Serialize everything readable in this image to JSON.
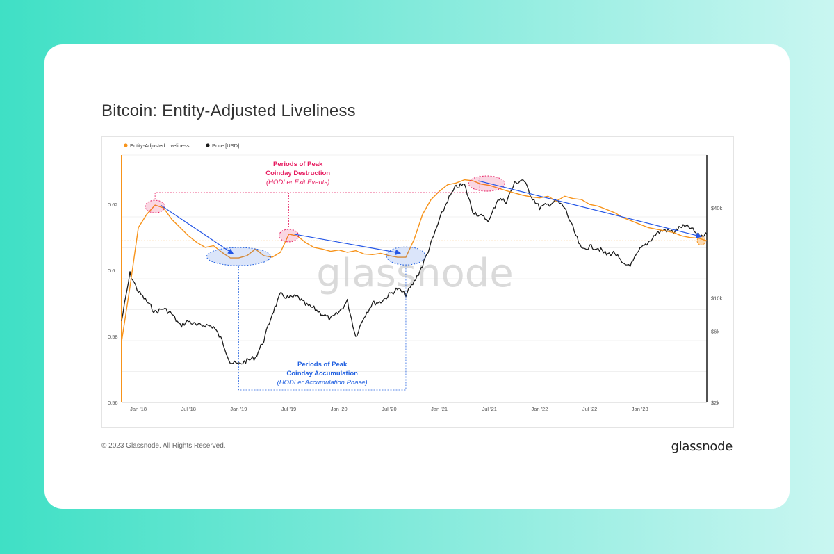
{
  "page": {
    "title": "Bitcoin: Entity-Adjusted Liveliness",
    "copyright": "© 2023 Glassnode. All Rights Reserved.",
    "brand": "glassnode"
  },
  "colors": {
    "liveliness": "#f7931a",
    "price": "#1a1a1a",
    "destruction": "#e6195e",
    "accumulation": "#1f5fe0",
    "trend_arrow": "#2456e6"
  },
  "chart_data": {
    "type": "line",
    "watermark": "glassnode",
    "legend": {
      "placement": "top-left",
      "items": [
        "Entity-Adjusted Liveliness",
        "Price [USD]"
      ]
    },
    "x_ticks": [
      "Jan '18",
      "Jul '18",
      "Jan '19",
      "Jul '19",
      "Jan '20",
      "Jul '20",
      "Jan '21",
      "Jul '21",
      "Jan '22",
      "Jul '22",
      "Jan '23"
    ],
    "x_range": [
      "2017-11",
      "2023-09"
    ],
    "y_left": {
      "range": [
        0.56,
        0.635
      ],
      "ticks": [
        "0.56",
        "0.58",
        "0.6",
        "0.62"
      ]
    },
    "y_right": {
      "scale": "log",
      "range": [
        2000,
        90000
      ],
      "ticks": [
        "$2k",
        "$6k",
        "$10k",
        "$40k"
      ]
    },
    "grid": true,
    "series": [
      {
        "name": "Entity-Adjusted Liveliness",
        "axis": "left",
        "x": [
          "2017-11",
          "2017-12",
          "2018-01",
          "2018-02",
          "2018-03",
          "2018-04",
          "2018-05",
          "2018-06",
          "2018-07",
          "2018-08",
          "2018-09",
          "2018-10",
          "2018-11",
          "2018-12",
          "2019-01",
          "2019-02",
          "2019-03",
          "2019-04",
          "2019-05",
          "2019-06",
          "2019-07",
          "2019-08",
          "2019-09",
          "2019-10",
          "2019-11",
          "2019-12",
          "2020-01",
          "2020-02",
          "2020-03",
          "2020-04",
          "2020-05",
          "2020-06",
          "2020-07",
          "2020-08",
          "2020-09",
          "2020-10",
          "2020-11",
          "2020-12",
          "2021-01",
          "2021-02",
          "2021-03",
          "2021-04",
          "2021-05",
          "2021-06",
          "2021-07",
          "2021-08",
          "2021-09",
          "2021-10",
          "2021-11",
          "2021-12",
          "2022-01",
          "2022-02",
          "2022-03",
          "2022-04",
          "2022-05",
          "2022-06",
          "2022-07",
          "2022-08",
          "2022-09",
          "2022-10",
          "2022-11",
          "2022-12",
          "2023-01",
          "2023-02",
          "2023-03",
          "2023-04",
          "2023-05",
          "2023-06",
          "2023-07",
          "2023-08",
          "2023-09"
        ],
        "values": [
          0.5785,
          0.595,
          0.613,
          0.617,
          0.6198,
          0.619,
          0.6155,
          0.613,
          0.6105,
          0.6085,
          0.607,
          0.6075,
          0.6055,
          0.6038,
          0.6038,
          0.6045,
          0.6065,
          0.6045,
          0.604,
          0.6055,
          0.611,
          0.6105,
          0.6085,
          0.607,
          0.6065,
          0.6058,
          0.6062,
          0.6055,
          0.606,
          0.605,
          0.6048,
          0.6052,
          0.6045,
          0.604,
          0.604,
          0.6095,
          0.617,
          0.6215,
          0.624,
          0.626,
          0.6265,
          0.6275,
          0.6272,
          0.6262,
          0.6258,
          0.625,
          0.6242,
          0.6235,
          0.6228,
          0.6223,
          0.622,
          0.6225,
          0.621,
          0.6225,
          0.6218,
          0.6215,
          0.62,
          0.6195,
          0.6185,
          0.6175,
          0.616,
          0.615,
          0.614,
          0.613,
          0.6125,
          0.612,
          0.6115,
          0.6105,
          0.61,
          0.6098,
          0.609
        ]
      },
      {
        "name": "Price [USD]",
        "axis": "right",
        "x": [
          "2017-11",
          "2017-12",
          "2018-01",
          "2018-02",
          "2018-03",
          "2018-04",
          "2018-05",
          "2018-06",
          "2018-07",
          "2018-08",
          "2018-09",
          "2018-10",
          "2018-11",
          "2018-12",
          "2019-01",
          "2019-02",
          "2019-03",
          "2019-04",
          "2019-05",
          "2019-06",
          "2019-07",
          "2019-08",
          "2019-09",
          "2019-10",
          "2019-11",
          "2019-12",
          "2020-01",
          "2020-02",
          "2020-03",
          "2020-04",
          "2020-05",
          "2020-06",
          "2020-07",
          "2020-08",
          "2020-09",
          "2020-10",
          "2020-11",
          "2020-12",
          "2021-01",
          "2021-02",
          "2021-03",
          "2021-04",
          "2021-05",
          "2021-06",
          "2021-07",
          "2021-08",
          "2021-09",
          "2021-10",
          "2021-11",
          "2021-12",
          "2022-01",
          "2022-02",
          "2022-03",
          "2022-04",
          "2022-05",
          "2022-06",
          "2022-07",
          "2022-08",
          "2022-09",
          "2022-10",
          "2022-11",
          "2022-12",
          "2023-01",
          "2023-02",
          "2023-03",
          "2023-04",
          "2023-05",
          "2023-06",
          "2023-07",
          "2023-08",
          "2023-09"
        ],
        "values": [
          7000,
          14500,
          11000,
          9500,
          8000,
          8500,
          7800,
          6500,
          7000,
          6500,
          6600,
          6400,
          5200,
          3700,
          3600,
          3800,
          4000,
          5200,
          7800,
          10500,
          10000,
          10200,
          9000,
          8500,
          7800,
          7200,
          8000,
          9500,
          5500,
          7500,
          9200,
          9400,
          10500,
          11500,
          10500,
          12800,
          16500,
          23000,
          33000,
          45000,
          55000,
          57000,
          38000,
          35000,
          33000,
          46000,
          44000,
          58000,
          62000,
          48000,
          40000,
          42000,
          44500,
          40000,
          29000,
          21000,
          22000,
          21500,
          19500,
          20000,
          16500,
          16800,
          21000,
          23500,
          27000,
          28500,
          27500,
          30000,
          29500,
          26000,
          26500
        ]
      }
    ],
    "annotations": [
      {
        "title": "Periods of Peak",
        "subtitle": "Coinday Destruction",
        "note": "(HODLer Exit Events)"
      },
      {
        "title": "Periods of Peak",
        "subtitle": "Coinday Accumulation",
        "note": "(HODLer Accumulation Phase)"
      }
    ]
  }
}
